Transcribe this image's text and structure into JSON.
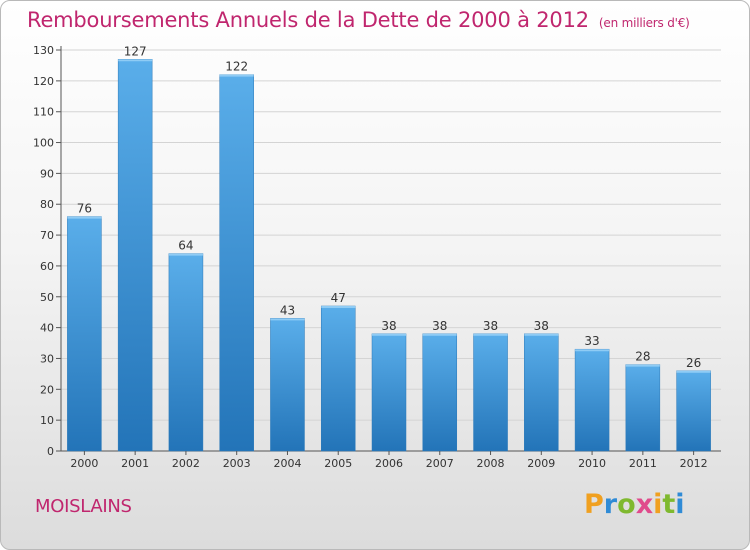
{
  "header": {
    "title": "Remboursements Annuels de la Dette de 2000 à 2012",
    "unit": "(en milliers d'€)"
  },
  "footer": {
    "commune": "MOISLAINS",
    "logo": {
      "p": "P",
      "r": "r",
      "o": "o",
      "x": "x",
      "i1": "i",
      "t": "t",
      "i2": "i"
    }
  },
  "colors": {
    "accent": "#c0266e",
    "bar_top": "#5aaeea",
    "bar_bottom": "#2374b8"
  },
  "chart_data": {
    "type": "bar",
    "categories": [
      "2000",
      "2001",
      "2002",
      "2003",
      "2004",
      "2005",
      "2006",
      "2007",
      "2008",
      "2009",
      "2010",
      "2011",
      "2012"
    ],
    "values": [
      76,
      127,
      64,
      122,
      43,
      47,
      38,
      38,
      38,
      38,
      33,
      28,
      26
    ],
    "ylim": [
      0,
      130
    ],
    "yticks": [
      0,
      10,
      20,
      30,
      40,
      50,
      60,
      70,
      80,
      90,
      100,
      110,
      120,
      130
    ],
    "grid": true,
    "data_labels": true
  }
}
